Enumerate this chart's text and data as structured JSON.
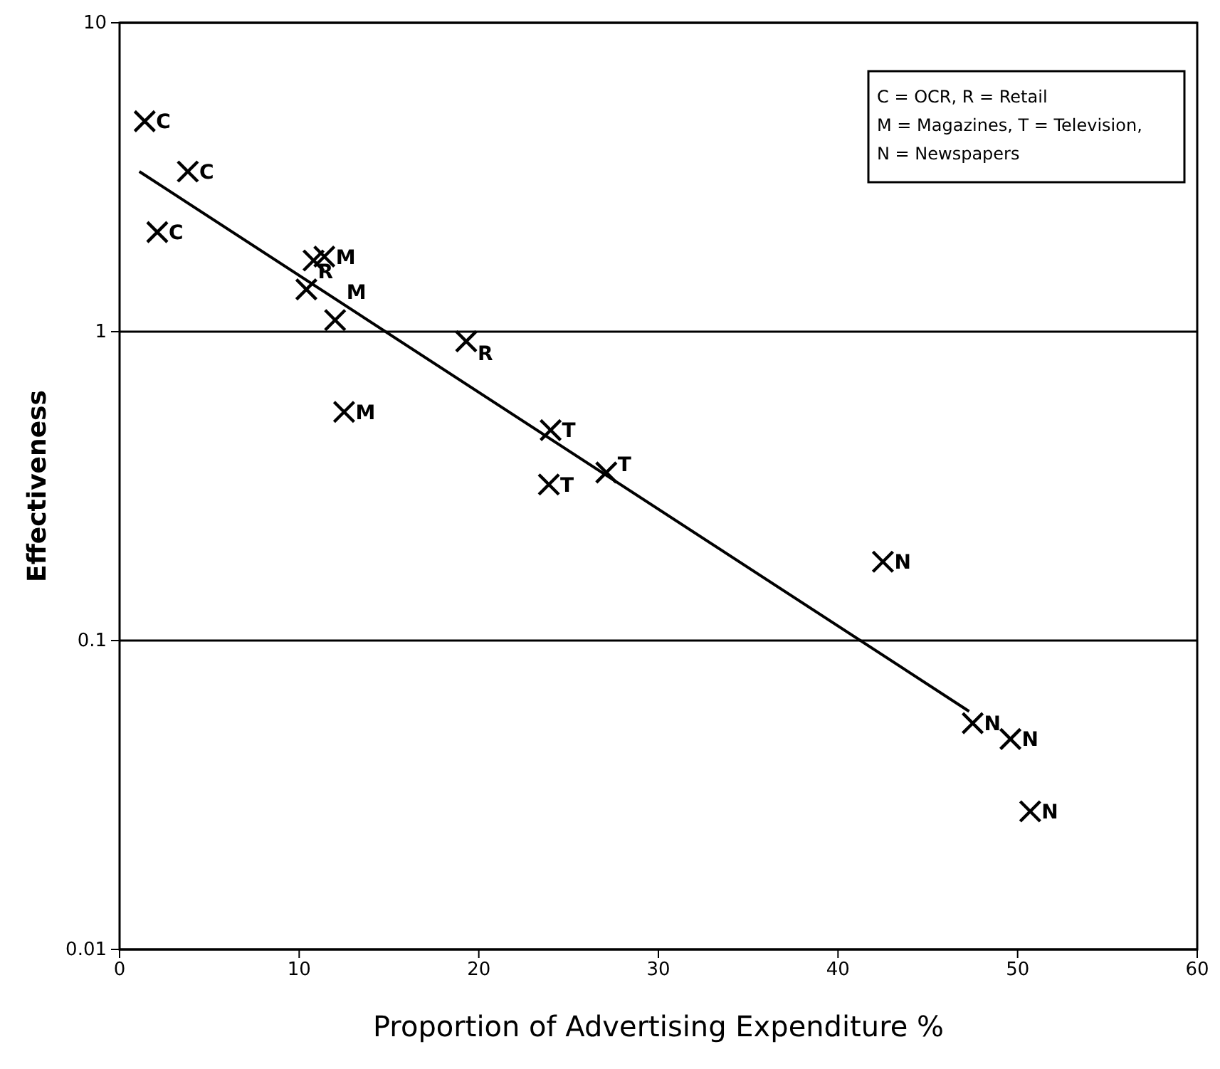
{
  "chart_data": {
    "type": "scatter",
    "xlabel": "Proportion of Advertising Expenditure %",
    "ylabel": "Effectiveness",
    "xlim": [
      0,
      60
    ],
    "xticks": [
      0,
      10,
      20,
      30,
      40,
      50,
      60
    ],
    "ylim": [
      0.01,
      10
    ],
    "yticks": [
      0.01,
      0.1,
      1,
      10
    ],
    "log": "y",
    "grid": "y",
    "marker": "cross",
    "annotations": [
      "C = OCR,  R = Retail",
      "M = Magazines,  T = Television,",
      "N = Newspapers"
    ],
    "series": [
      {
        "name": "C",
        "color": "#000000",
        "x": [
          1.4,
          3.8,
          2.1
        ],
        "values": [
          4.8,
          3.3,
          2.1
        ]
      },
      {
        "name": "M",
        "color": "#000000",
        "x": [
          10.8,
          11.4,
          12.0,
          12.5
        ],
        "values": [
          1.7,
          1.75,
          1.09,
          0.55
        ]
      },
      {
        "name": "R",
        "color": "#000000",
        "x": [
          10.4,
          19.3
        ],
        "values": [
          1.37,
          0.93
        ]
      },
      {
        "name": "T",
        "color": "#000000",
        "x": [
          24.0,
          23.9,
          27.1
        ],
        "values": [
          0.48,
          0.32,
          0.35
        ]
      },
      {
        "name": "N",
        "color": "#000000",
        "x": [
          42.5,
          47.5,
          49.6,
          50.7
        ],
        "values": [
          0.18,
          0.054,
          0.048,
          0.028
        ]
      },
      {
        "type": "line",
        "color": "#000000",
        "x": [
          1.1,
          47.3
        ],
        "values": [
          3.3,
          0.059
        ],
        "marker": "none",
        "line_style": "solid"
      }
    ]
  }
}
